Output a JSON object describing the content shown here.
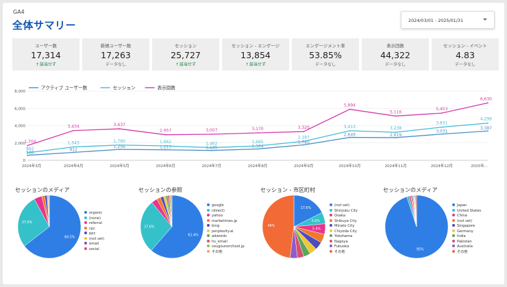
{
  "header": {
    "brand": "GA4",
    "title": "全体サマリー",
    "date_range": "2024/03/01 - 2025/01/31"
  },
  "scorecards": [
    {
      "label": "ユーザー数",
      "value": "17,314",
      "sub": "該当せず",
      "trend": true
    },
    {
      "label": "新規ユーザー数",
      "value": "17,263",
      "sub": "データなし",
      "trend": false
    },
    {
      "label": "セッション",
      "value": "25,727",
      "sub": "該当せず",
      "trend": true
    },
    {
      "label": "セッション - エンゲージ",
      "value": "13,854",
      "sub": "該当せず",
      "trend": true
    },
    {
      "label": "エンゲージメント率",
      "value": "53.85%",
      "sub": "データなし",
      "trend": false
    },
    {
      "label": "表示回数",
      "value": "44,322",
      "sub": "データなし",
      "trend": false
    },
    {
      "label": "セッション - イベント",
      "value": "4.83",
      "sub": "データなし",
      "trend": false
    }
  ],
  "chart_data": [
    {
      "type": "line",
      "categories": [
        "2024年3月",
        "2024年4月",
        "2024年5月",
        "2024年6月",
        "2024年7月",
        "2024年8月",
        "2024年9月",
        "2024年10月",
        "2024年11月",
        "2024年12月",
        "2025年..."
      ],
      "ylim": [
        0,
        8000
      ],
      "yticks": [
        "0",
        "2,000",
        "4,000",
        "6,000",
        "8,000"
      ],
      "grid": true,
      "legend_position": "top-left",
      "series": [
        {
          "name": "アクティブ ユーザー数",
          "color": "#4a90c8",
          "values": [
            580,
            912,
            1256,
            1213,
            1135,
            1304,
            1780,
            2649,
            2619,
            3031,
            3387
          ],
          "labels": [
            "580",
            "912",
            "1,256",
            "1,213",
            "1,135",
            "1,304",
            "1,780",
            "2,649",
            "2,619",
            "3,031",
            "3,387"
          ]
        },
        {
          "name": "セッション",
          "color": "#3fbcd6",
          "values": [
            862,
            1543,
            1760,
            1662,
            1462,
            1665,
            2187,
            3413,
            3238,
            3831,
            4299
          ],
          "labels": [
            "862",
            "1,543",
            "1,760",
            "1,662",
            "1,462",
            "1,665",
            "2,187",
            "3,413",
            "3,238",
            "3,831",
            "4,299"
          ]
        },
        {
          "name": "表示回数",
          "color": "#d63aa8",
          "values": [
            1704,
            3434,
            3637,
            2957,
            3007,
            3170,
            3320,
            5894,
            5116,
            5453,
            6630
          ],
          "labels": [
            "1,704",
            "3,434",
            "3,637",
            "2,957",
            "3,007",
            "3,170",
            "3,320",
            "5,894",
            "5,116",
            "5,453",
            "6,630"
          ]
        }
      ]
    },
    {
      "type": "pie",
      "title": "セッションのメディア",
      "categories": [
        "organic",
        "(none)",
        "referral",
        "cpc",
        "ppc",
        "(not set)",
        "email",
        "social"
      ],
      "values": [
        64.5,
        27.6,
        4.0,
        1.5,
        1.2,
        0.6,
        0.4,
        0.2
      ],
      "colors": [
        "#2f7ee6",
        "#35c1c9",
        "#e8348f",
        "#f07a2a",
        "#4c4cbf",
        "#f0c63b",
        "#7b4fc7",
        "#d84e6f"
      ],
      "slice_labels": [
        "64.5%",
        "27.6%",
        "",
        "",
        "",
        "",
        "",
        ""
      ]
    },
    {
      "type": "pie",
      "title": "セッションの参照",
      "categories": [
        "google",
        "(direct)",
        "yahoo",
        "marketimes.jp",
        "bing",
        "perplexity.ai",
        "adwords",
        "hs_email",
        "sougouronchool.jp",
        "その他"
      ],
      "values": [
        61.4,
        27.6,
        3.0,
        2.0,
        1.6,
        1.2,
        1.0,
        0.8,
        0.6,
        0.8
      ],
      "colors": [
        "#2f7ee6",
        "#35c1c9",
        "#e8348f",
        "#f07a2a",
        "#4c4cbf",
        "#f0c63b",
        "#5aa65a",
        "#d84e6f",
        "#8bc34a",
        "#f4a261"
      ],
      "slice_labels": [
        "61.4%",
        "27.6%",
        "",
        "",
        "",
        "",
        "",
        "",
        "",
        ""
      ]
    },
    {
      "type": "pie",
      "title": "セッション - 市区町村",
      "categories": [
        "(not set)",
        "Shinjuku City",
        "Osaka",
        "Shibuya City",
        "Minato City",
        "Chiyoda City",
        "Yokohama",
        "Nagoya",
        "Fukuoka",
        "その他"
      ],
      "values": [
        17.6,
        5.9,
        5.4,
        4.5,
        4.1,
        3.9,
        3.5,
        3.3,
        3.8,
        48
      ],
      "colors": [
        "#2f7ee6",
        "#35c1c9",
        "#e8348f",
        "#f07a2a",
        "#4c4cbf",
        "#f0c63b",
        "#5aa65a",
        "#d84e6f",
        "#8e5cc9",
        "#f26a35"
      ],
      "slice_labels": [
        "17.6%",
        "5.9%",
        "5.4%",
        "",
        "",
        "",
        "",
        "",
        "",
        "48%"
      ]
    },
    {
      "type": "pie",
      "title": "セッションのメディア",
      "categories": [
        "Japan",
        "United States",
        "China",
        "(not set)",
        "Singapore",
        "Germany",
        "India",
        "Pakistan",
        "Australia",
        "その他"
      ],
      "values": [
        95,
        1.2,
        0.8,
        0.6,
        0.5,
        0.4,
        0.3,
        0.3,
        0.3,
        0.6
      ],
      "colors": [
        "#2f7ee6",
        "#35c1c9",
        "#e8348f",
        "#f07a2a",
        "#4c4cbf",
        "#f0c63b",
        "#5aa65a",
        "#d84e6f",
        "#8e5cc9",
        "#f26a35"
      ],
      "slice_labels": [
        "95%",
        "",
        "",
        "",
        "",
        "",
        "",
        "",
        "",
        ""
      ]
    }
  ]
}
